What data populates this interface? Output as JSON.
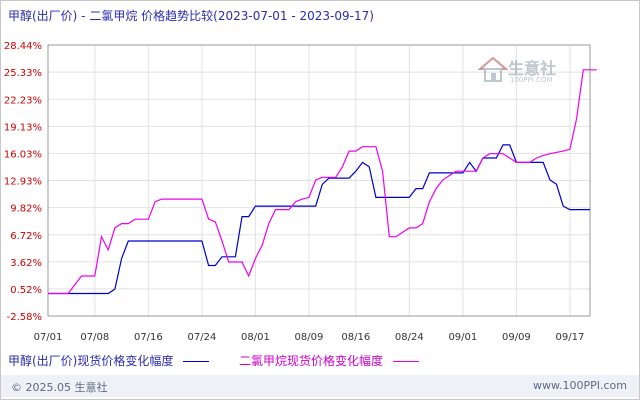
{
  "chart_data": {
    "type": "line",
    "title": "甲醇(出厂价) - 二氯甲烷 价格趋势比较(2023-07-01 - 2023-09-17)",
    "y_ticks": [
      "28.44%",
      "25.33%",
      "22.23%",
      "19.13%",
      "16.03%",
      "12.93%",
      "9.82%",
      "6.72%",
      "3.62%",
      "0.52%",
      "-2.58%"
    ],
    "ylim": [
      -2.58,
      28.44
    ],
    "x_ticks": [
      "07/01",
      "07/08",
      "07/16",
      "07/24",
      "08/01",
      "08/09",
      "08/16",
      "08/24",
      "09/01",
      "09/09",
      "09/17"
    ],
    "x_tick_days": [
      0,
      7,
      15,
      23,
      31,
      39,
      46,
      54,
      62,
      70,
      78
    ],
    "grid": true,
    "series": [
      {
        "name": "甲醇(出厂价)现货价格变化幅度",
        "color": "#0000cc",
        "points": [
          [
            0,
            0
          ],
          [
            5,
            0
          ],
          [
            9,
            0
          ],
          [
            10,
            0.5
          ],
          [
            11,
            4
          ],
          [
            12,
            6
          ],
          [
            13,
            6
          ],
          [
            22,
            6
          ],
          [
            23,
            6
          ],
          [
            24,
            3.2
          ],
          [
            25,
            3.2
          ],
          [
            26,
            4.2
          ],
          [
            27,
            4.2
          ],
          [
            28,
            4.2
          ],
          [
            29,
            8.8
          ],
          [
            30,
            8.8
          ],
          [
            31,
            10
          ],
          [
            39,
            10
          ],
          [
            40,
            10
          ],
          [
            41,
            12.5
          ],
          [
            42,
            13.2
          ],
          [
            45,
            13.2
          ],
          [
            46,
            14
          ],
          [
            47,
            15
          ],
          [
            48,
            14.5
          ],
          [
            49,
            11
          ],
          [
            53,
            11
          ],
          [
            54,
            11
          ],
          [
            55,
            12
          ],
          [
            56,
            12
          ],
          [
            57,
            13.8
          ],
          [
            62,
            13.8
          ],
          [
            63,
            15
          ],
          [
            64,
            14
          ],
          [
            65,
            15.5
          ],
          [
            67,
            15.5
          ],
          [
            68,
            17
          ],
          [
            69,
            17
          ],
          [
            70,
            15
          ],
          [
            71,
            15
          ],
          [
            72,
            15
          ],
          [
            74,
            15
          ],
          [
            75,
            13
          ],
          [
            76,
            12.5
          ],
          [
            77,
            10
          ],
          [
            78,
            9.6
          ],
          [
            81,
            9.6
          ]
        ]
      },
      {
        "name": "二氯甲烷现货价格变化幅度",
        "color": "#ee00ee",
        "points": [
          [
            0,
            0
          ],
          [
            3,
            0
          ],
          [
            4,
            1
          ],
          [
            5,
            2
          ],
          [
            6,
            2
          ],
          [
            7,
            2
          ],
          [
            8,
            6.5
          ],
          [
            9,
            5
          ],
          [
            10,
            7.5
          ],
          [
            11,
            8
          ],
          [
            12,
            8
          ],
          [
            13,
            8.5
          ],
          [
            14,
            8.5
          ],
          [
            15,
            8.5
          ],
          [
            16,
            10.5
          ],
          [
            17,
            10.8
          ],
          [
            22,
            10.8
          ],
          [
            23,
            10.8
          ],
          [
            24,
            8.5
          ],
          [
            25,
            8.2
          ],
          [
            26,
            6
          ],
          [
            27,
            3.6
          ],
          [
            28,
            3.6
          ],
          [
            29,
            3.6
          ],
          [
            30,
            2
          ],
          [
            31,
            4
          ],
          [
            32,
            5.5
          ],
          [
            33,
            8
          ],
          [
            34,
            9.6
          ],
          [
            35,
            9.6
          ],
          [
            36,
            9.6
          ],
          [
            37,
            10.5
          ],
          [
            38,
            10.8
          ],
          [
            39,
            11
          ],
          [
            40,
            13
          ],
          [
            41,
            13.3
          ],
          [
            42,
            13.3
          ],
          [
            43,
            13.3
          ],
          [
            44,
            14.5
          ],
          [
            45,
            16.3
          ],
          [
            46,
            16.3
          ],
          [
            47,
            16.8
          ],
          [
            48,
            16.8
          ],
          [
            49,
            16.8
          ],
          [
            50,
            14
          ],
          [
            51,
            6.5
          ],
          [
            52,
            6.5
          ],
          [
            53,
            7
          ],
          [
            54,
            7.5
          ],
          [
            55,
            7.5
          ],
          [
            56,
            8
          ],
          [
            57,
            10.5
          ],
          [
            58,
            12
          ],
          [
            59,
            13
          ],
          [
            60,
            13.5
          ],
          [
            61,
            14
          ],
          [
            62,
            14
          ],
          [
            63,
            14
          ],
          [
            64,
            14
          ],
          [
            65,
            15.5
          ],
          [
            66,
            16
          ],
          [
            67,
            16
          ],
          [
            68,
            16
          ],
          [
            69,
            15.5
          ],
          [
            70,
            15
          ],
          [
            72,
            15
          ],
          [
            73,
            15.5
          ],
          [
            74,
            15.8
          ],
          [
            75,
            16
          ],
          [
            77,
            16.3
          ],
          [
            78,
            16.5
          ],
          [
            79,
            20
          ],
          [
            80,
            25.6
          ],
          [
            82,
            25.6
          ]
        ]
      }
    ]
  },
  "legend": {
    "series1_label": "甲醇(出厂价)现货价格变化幅度",
    "series2_label": "二氯甲烷现货价格变化幅度"
  },
  "footer": {
    "copyright": "© 2025.05 生意社",
    "website": "www.100PPI.com"
  },
  "watermark": {
    "text_cn": "生意社",
    "text_en": "100PPI.COM"
  }
}
